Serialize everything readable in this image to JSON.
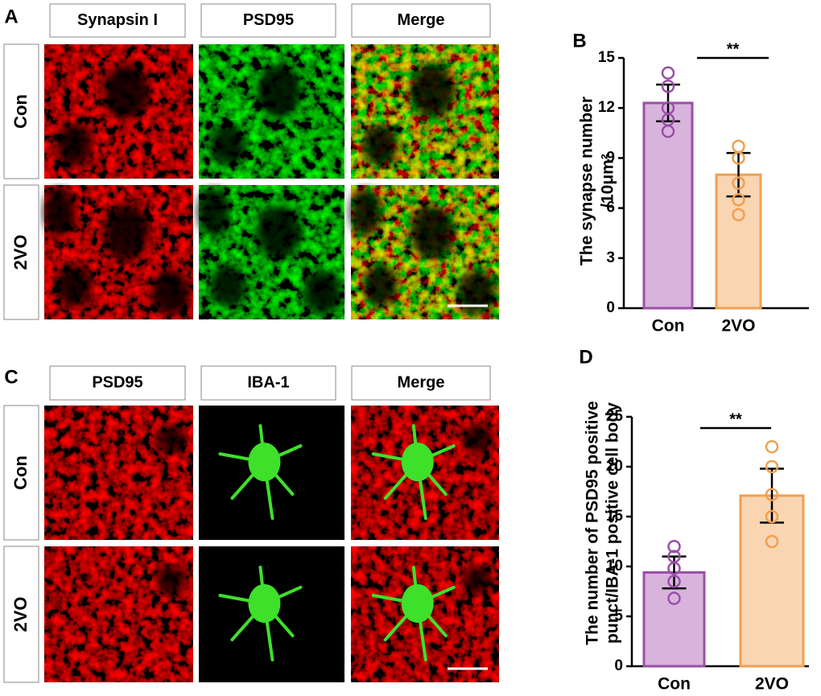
{
  "image_panels": [
    {
      "panel_label": "A",
      "columns": [
        "Synapsin I",
        "PSD95",
        "Merge"
      ],
      "rows": [
        "Con",
        "2VO"
      ]
    },
    {
      "panel_label": "C",
      "columns": [
        "PSD95",
        "IBA-1",
        "Merge"
      ],
      "rows": [
        "Con",
        "2VO"
      ]
    }
  ],
  "chart_data": [
    {
      "type": "bar",
      "panel_label": "B",
      "ylabel": [
        "The synapse number",
        "/10μm²"
      ],
      "categories": [
        "Con",
        "2VO"
      ],
      "values": [
        12.3,
        8.0
      ],
      "errors": [
        1.1,
        1.3
      ],
      "points": [
        [
          14.1,
          13.3,
          12.0,
          11.3,
          10.6
        ],
        [
          9.7,
          9.0,
          7.5,
          6.5,
          5.6
        ]
      ],
      "colors": [
        "#d8b4dc",
        "#f9d5b2"
      ],
      "edge_colors": [
        "#9b4ea8",
        "#f0a050"
      ],
      "ylim": [
        0,
        15
      ],
      "yticks": [
        0,
        3,
        6,
        9,
        12,
        15
      ],
      "significance": "**"
    },
    {
      "type": "bar",
      "panel_label": "D",
      "ylabel": [
        "The number of PSD95 positive",
        "punct/IBA-1 positive cell body"
      ],
      "categories": [
        "Con",
        "2VO"
      ],
      "values": [
        9.4,
        17.1
      ],
      "errors": [
        1.6,
        2.7
      ],
      "points": [
        [
          12.0,
          11.0,
          9.8,
          8.5,
          6.8
        ],
        [
          22.0,
          20.0,
          17.2,
          15.0,
          12.5
        ]
      ],
      "colors": [
        "#d8b4dc",
        "#f9d5b2"
      ],
      "edge_colors": [
        "#9b4ea8",
        "#f0a050"
      ],
      "ylim": [
        0,
        25
      ],
      "yticks": [
        0,
        5,
        10,
        15,
        20,
        25
      ],
      "significance": "**"
    }
  ]
}
